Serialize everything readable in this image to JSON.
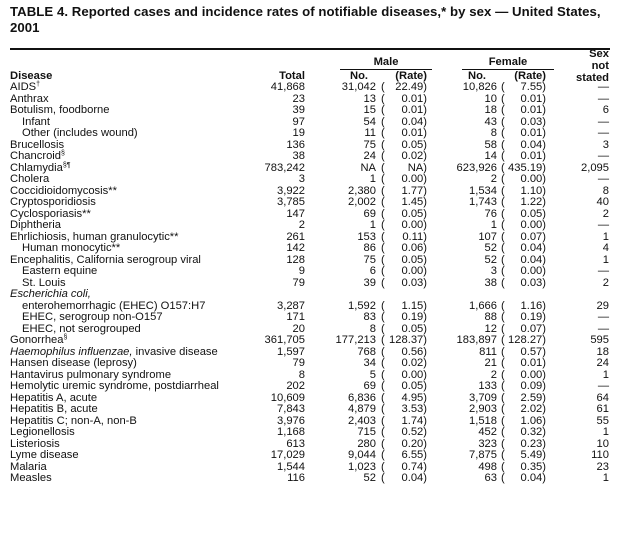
{
  "title": "TABLE 4. Reported cases and incidence rates of notifiable diseases,* by sex — United States, 2001",
  "headers": {
    "disease": "Disease",
    "total": "Total",
    "male": "Male",
    "female": "Female",
    "no": "No.",
    "rate": "(Rate)",
    "sex_not_stated": [
      "Sex",
      "not",
      "stated"
    ]
  },
  "rows": [
    {
      "name": "AIDS",
      "sup": "†",
      "total": "41,868",
      "m_no": "31,042",
      "m_rate": "22.49",
      "f_no": "10,826",
      "f_rate": "7.55",
      "ns": "—"
    },
    {
      "name": "Anthrax",
      "total": "23",
      "m_no": "13",
      "m_rate": "0.01",
      "f_no": "10",
      "f_rate": "0.01",
      "ns": "—"
    },
    {
      "name": "Botulism, foodborne",
      "total": "39",
      "m_no": "15",
      "m_rate": "0.01",
      "f_no": "18",
      "f_rate": "0.01",
      "ns": "6"
    },
    {
      "name": "Infant",
      "indent": true,
      "total": "97",
      "m_no": "54",
      "m_rate": "0.04",
      "f_no": "43",
      "f_rate": "0.03",
      "ns": "—"
    },
    {
      "name": "Other (includes wound)",
      "indent": true,
      "total": "19",
      "m_no": "11",
      "m_rate": "0.01",
      "f_no": "8",
      "f_rate": "0.01",
      "ns": "—"
    },
    {
      "name": "Brucellosis",
      "total": "136",
      "m_no": "75",
      "m_rate": "0.05",
      "f_no": "58",
      "f_rate": "0.04",
      "ns": "3"
    },
    {
      "name": "Chancroid",
      "sup": "§",
      "total": "38",
      "m_no": "24",
      "m_rate": "0.02",
      "f_no": "14",
      "f_rate": "0.01",
      "ns": "—"
    },
    {
      "name": "Chlamydia",
      "sup": "§¶",
      "total": "783,242",
      "m_no": "NA",
      "m_rate": "NA",
      "f_no": "623,926",
      "f_rate": "435.19",
      "ns": "2,095"
    },
    {
      "name": "Cholera",
      "total": "3",
      "m_no": "1",
      "m_rate": "0.00",
      "f_no": "2",
      "f_rate": "0.00",
      "ns": "—"
    },
    {
      "name": "Coccidioidomycosis**",
      "total": "3,922",
      "m_no": "2,380",
      "m_rate": "1.77",
      "f_no": "1,534",
      "f_rate": "1.10",
      "ns": "8"
    },
    {
      "name": "Cryptosporidiosis",
      "total": "3,785",
      "m_no": "2,002",
      "m_rate": "1.45",
      "f_no": "1,743",
      "f_rate": "1.22",
      "ns": "40"
    },
    {
      "name": "Cyclosporiasis**",
      "total": "147",
      "m_no": "69",
      "m_rate": "0.05",
      "f_no": "76",
      "f_rate": "0.05",
      "ns": "2"
    },
    {
      "name": "Diphtheria",
      "total": "2",
      "m_no": "1",
      "m_rate": "0.00",
      "f_no": "1",
      "f_rate": "0.00",
      "ns": "—"
    },
    {
      "name": "Ehrlichiosis, human granulocytic**",
      "total": "261",
      "m_no": "153",
      "m_rate": "0.11",
      "f_no": "107",
      "f_rate": "0.07",
      "ns": "1"
    },
    {
      "name": "Human monocytic**",
      "indent": true,
      "total": "142",
      "m_no": "86",
      "m_rate": "0.06",
      "f_no": "52",
      "f_rate": "0.04",
      "ns": "4"
    },
    {
      "name": "Encephalitis, California serogroup viral",
      "total": "128",
      "m_no": "75",
      "m_rate": "0.05",
      "f_no": "52",
      "f_rate": "0.04",
      "ns": "1"
    },
    {
      "name": "Eastern equine",
      "indent": true,
      "total": "9",
      "m_no": "6",
      "m_rate": "0.00",
      "f_no": "3",
      "f_rate": "0.00",
      "ns": "—"
    },
    {
      "name": "St. Louis",
      "indent": true,
      "total": "79",
      "m_no": "39",
      "m_rate": "0.03",
      "f_no": "38",
      "f_rate": "0.03",
      "ns": "2"
    },
    {
      "italic": "Escherichia coli,",
      "name": ""
    },
    {
      "name": "enterohemorrhagic (EHEC) O157:H7",
      "indent": true,
      "total": "3,287",
      "m_no": "1,592",
      "m_rate": "1.15",
      "f_no": "1,666",
      "f_rate": "1.16",
      "ns": "29"
    },
    {
      "name": "EHEC, serogroup non-O157",
      "indent": true,
      "total": "171",
      "m_no": "83",
      "m_rate": "0.19",
      "f_no": "88",
      "f_rate": "0.19",
      "ns": "—"
    },
    {
      "name": "EHEC, not serogrouped",
      "indent": true,
      "total": "20",
      "m_no": "8",
      "m_rate": "0.05",
      "f_no": "12",
      "f_rate": "0.07",
      "ns": "—"
    },
    {
      "name": "Gonorrhea",
      "sup": "§",
      "total": "361,705",
      "m_no": "177,213",
      "m_rate": "128.37",
      "f_no": "183,897",
      "f_rate": "128.27",
      "ns": "595"
    },
    {
      "italic": "Haemophilus influenzae,",
      "name": " invasive disease",
      "total": "1,597",
      "m_no": "768",
      "m_rate": "0.56",
      "f_no": "811",
      "f_rate": "0.57",
      "ns": "18"
    },
    {
      "name": "Hansen disease (leprosy)",
      "total": "79",
      "m_no": "34",
      "m_rate": "0.02",
      "f_no": "21",
      "f_rate": "0.01",
      "ns": "24"
    },
    {
      "name": "Hantavirus pulmonary syndrome",
      "total": "8",
      "m_no": "5",
      "m_rate": "0.00",
      "f_no": "2",
      "f_rate": "0.00",
      "ns": "1"
    },
    {
      "name": "Hemolytic uremic syndrome, postdiarrheal",
      "total": "202",
      "m_no": "69",
      "m_rate": "0.05",
      "f_no": "133",
      "f_rate": "0.09",
      "ns": "—"
    },
    {
      "name": "Hepatitis A, acute",
      "total": "10,609",
      "m_no": "6,836",
      "m_rate": "4.95",
      "f_no": "3,709",
      "f_rate": "2.59",
      "ns": "64"
    },
    {
      "name": "Hepatitis B, acute",
      "total": "7,843",
      "m_no": "4,879",
      "m_rate": "3.53",
      "f_no": "2,903",
      "f_rate": "2.02",
      "ns": "61"
    },
    {
      "name": "Hepatitis C; non-A, non-B",
      "total": "3,976",
      "m_no": "2,403",
      "m_rate": "1.74",
      "f_no": "1,518",
      "f_rate": "1.06",
      "ns": "55"
    },
    {
      "name": "Legionellosis",
      "total": "1,168",
      "m_no": "715",
      "m_rate": "0.52",
      "f_no": "452",
      "f_rate": "0.32",
      "ns": "1"
    },
    {
      "name": "Listeriosis",
      "total": "613",
      "m_no": "280",
      "m_rate": "0.20",
      "f_no": "323",
      "f_rate": "0.23",
      "ns": "10"
    },
    {
      "name": "Lyme disease",
      "total": "17,029",
      "m_no": "9,044",
      "m_rate": "6.55",
      "f_no": "7,875",
      "f_rate": "5.49",
      "ns": "110"
    },
    {
      "name": "Malaria",
      "total": "1,544",
      "m_no": "1,023",
      "m_rate": "0.74",
      "f_no": "498",
      "f_rate": "0.35",
      "ns": "23"
    },
    {
      "name": "Measles",
      "total": "116",
      "m_no": "52",
      "m_rate": "0.04",
      "f_no": "63",
      "f_rate": "0.04",
      "ns": "1"
    }
  ]
}
